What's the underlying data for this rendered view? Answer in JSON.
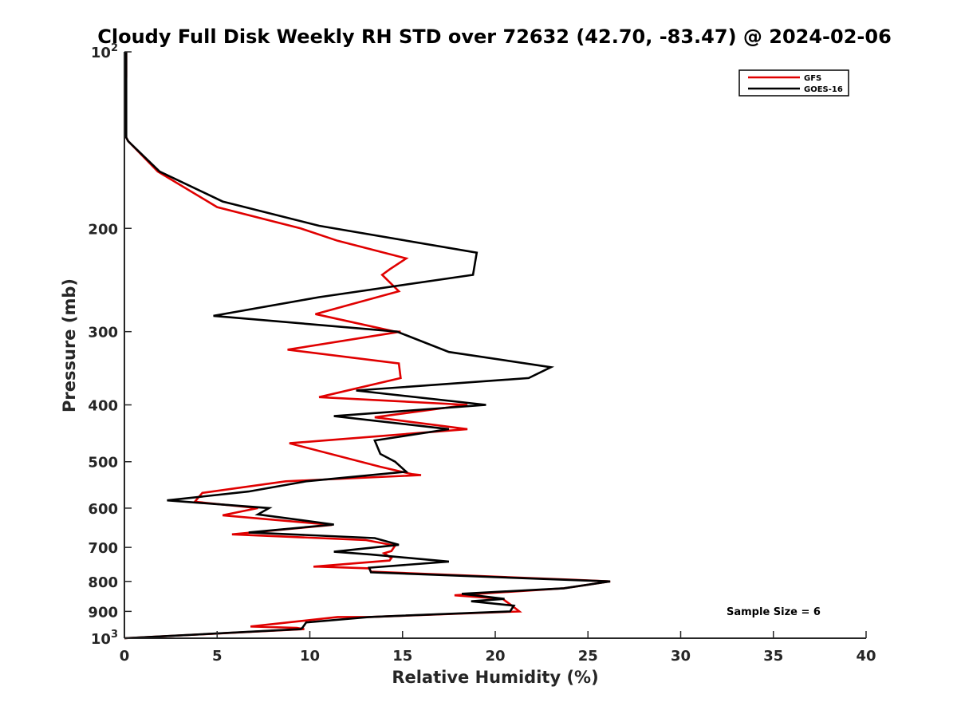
{
  "chart_data": {
    "type": "line",
    "title": "Cloudy Full Disk Weekly RH STD over 72632 (42.70, -83.47) @ 2024-02-06",
    "xlabel": "Relative Humidity (%)",
    "ylabel": "Pressure (mb)",
    "xlim": [
      0,
      40
    ],
    "ylim": [
      100,
      1000
    ],
    "y_scale": "log",
    "y_reversed": true,
    "grid": false,
    "legend_position": "top-right",
    "x_ticks": [
      "0",
      "5",
      "10",
      "15",
      "20",
      "25",
      "30",
      "35",
      "40"
    ],
    "y_ticks": [
      {
        "value": 100,
        "base": "10",
        "exp": "2"
      },
      {
        "value": 200,
        "label": "200"
      },
      {
        "value": 300,
        "label": "300"
      },
      {
        "value": 400,
        "label": "400"
      },
      {
        "value": 500,
        "label": "500"
      },
      {
        "value": 600,
        "label": "600"
      },
      {
        "value": 700,
        "label": "700"
      },
      {
        "value": 800,
        "label": "800"
      },
      {
        "value": 900,
        "label": "900"
      },
      {
        "value": 1000,
        "base": "10",
        "exp": "3"
      }
    ],
    "series": [
      {
        "name": "GFS",
        "color": "#e00000",
        "points": [
          [
            0.1,
            100
          ],
          [
            0.1,
            110
          ],
          [
            0.05,
            125
          ],
          [
            0.1,
            140
          ],
          [
            0.2,
            142
          ],
          [
            1.8,
            160
          ],
          [
            5,
            184
          ],
          [
            9.5,
            200
          ],
          [
            11.5,
            210
          ],
          [
            15.2,
            225
          ],
          [
            14.3,
            235
          ],
          [
            13.9,
            240
          ],
          [
            14.8,
            256
          ],
          [
            10.3,
            280
          ],
          [
            14.6,
            300
          ],
          [
            14.9,
            300
          ],
          [
            8.8,
            322
          ],
          [
            14.8,
            340
          ],
          [
            14.9,
            360
          ],
          [
            10.5,
            388
          ],
          [
            18.5,
            400
          ],
          [
            13.5,
            420
          ],
          [
            18.5,
            440
          ],
          [
            8.9,
            465
          ],
          [
            13.8,
            510
          ],
          [
            15.5,
            525
          ],
          [
            16,
            527
          ],
          [
            8.7,
            540
          ],
          [
            4.2,
            565
          ],
          [
            3.8,
            585
          ],
          [
            7.2,
            600
          ],
          [
            5.3,
            617
          ],
          [
            11.2,
            641
          ],
          [
            5.8,
            665
          ],
          [
            13,
            680
          ],
          [
            14.6,
            695
          ],
          [
            14.4,
            710
          ],
          [
            14,
            716
          ],
          [
            14.4,
            730
          ],
          [
            14.3,
            737
          ],
          [
            10.2,
            755
          ],
          [
            10.5,
            755
          ],
          [
            13.2,
            760
          ],
          [
            13.3,
            770
          ],
          [
            24.3,
            795
          ],
          [
            26.2,
            800
          ],
          [
            23.7,
            822
          ],
          [
            17.8,
            845
          ],
          [
            20.4,
            857
          ],
          [
            20.9,
            880
          ],
          [
            21.3,
            900
          ],
          [
            13.2,
            920
          ],
          [
            11.5,
            920
          ],
          [
            6.8,
            955
          ],
          [
            9.3,
            960
          ],
          [
            9.7,
            965
          ],
          [
            0,
            1000
          ]
        ]
      },
      {
        "name": "GOES-16",
        "color": "#000000",
        "points": [
          [
            0.1,
            100
          ],
          [
            0.1,
            110
          ],
          [
            0.1,
            125
          ],
          [
            0.1,
            140
          ],
          [
            0.2,
            142
          ],
          [
            1.9,
            160
          ],
          [
            5.3,
            180
          ],
          [
            10.5,
            198
          ],
          [
            19,
            220
          ],
          [
            18.8,
            240
          ],
          [
            10.5,
            262
          ],
          [
            4.8,
            282
          ],
          [
            14.7,
            300
          ],
          [
            17.5,
            325
          ],
          [
            23,
            345
          ],
          [
            21.8,
            360
          ],
          [
            12.5,
            378
          ],
          [
            19.5,
            400
          ],
          [
            11.3,
            418
          ],
          [
            17.5,
            440
          ],
          [
            13.5,
            460
          ],
          [
            13.8,
            485
          ],
          [
            14.6,
            500
          ],
          [
            15.2,
            520
          ],
          [
            9.8,
            540
          ],
          [
            6.7,
            562
          ],
          [
            2.3,
            582
          ],
          [
            7.8,
            600
          ],
          [
            7.2,
            615
          ],
          [
            11.3,
            640
          ],
          [
            6.7,
            660
          ],
          [
            13.5,
            675
          ],
          [
            14.8,
            693
          ],
          [
            11.3,
            712
          ],
          [
            13.3,
            720
          ],
          [
            17.5,
            740
          ],
          [
            13.2,
            758
          ],
          [
            13.3,
            772
          ],
          [
            24.3,
            796
          ],
          [
            26.2,
            800
          ],
          [
            23.7,
            822
          ],
          [
            18.2,
            840
          ],
          [
            20.5,
            857
          ],
          [
            18.7,
            865
          ],
          [
            21,
            880
          ],
          [
            20.8,
            900
          ],
          [
            13.2,
            920
          ],
          [
            9.8,
            940
          ],
          [
            9.6,
            960
          ],
          [
            9.5,
            965
          ],
          [
            0,
            1000
          ]
        ]
      }
    ],
    "legend": [
      "GFS",
      "GOES-16"
    ],
    "annotation": "Sample Size = 6"
  }
}
